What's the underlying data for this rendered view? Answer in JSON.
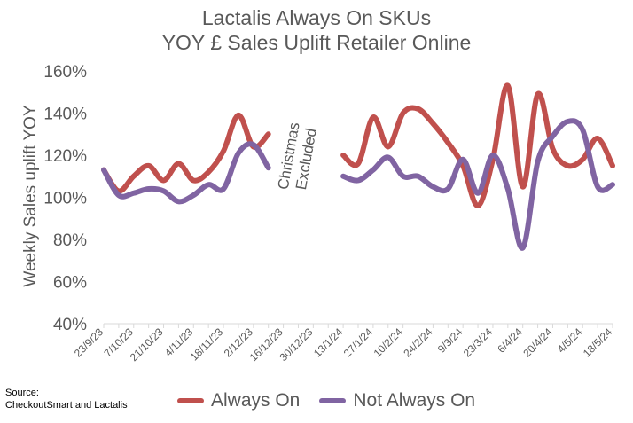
{
  "chart_data": {
    "type": "line",
    "title": "Lactalis Always On SKUs",
    "subtitle": "YOY £ Sales Uplift Retailer Online",
    "ylabel": "Weekly Sales uplift YOY",
    "xlabel": "",
    "ylim": [
      40,
      160
    ],
    "yticks": [
      "40%",
      "60%",
      "80%",
      "100%",
      "120%",
      "140%",
      "160%"
    ],
    "ytick_values": [
      40,
      60,
      80,
      100,
      120,
      140,
      160
    ],
    "x_labels": [
      "23/9/23",
      "7/10/23",
      "21/10/23",
      "4/11/23",
      "18/11/23",
      "2/12/23",
      "16/12/23",
      "30/12/23",
      "13/1/24",
      "27/1/24",
      "10/2/24",
      "24/2/24",
      "9/3/24",
      "23/3/24",
      "6/4/24",
      "20/4/24",
      "4/5/24",
      "18/5/24"
    ],
    "weeks": 35,
    "annotation": "Christmas Excluded",
    "series": [
      {
        "name": "Always On",
        "color": "#c0504d",
        "segments": [
          [
            [
              0,
              113
            ],
            [
              1,
              103
            ],
            [
              2,
              110
            ],
            [
              3,
              115
            ],
            [
              4,
              108
            ],
            [
              5,
              116
            ],
            [
              6,
              108
            ],
            [
              7,
              112
            ],
            [
              8,
              122
            ],
            [
              9,
              139
            ],
            [
              10,
              124
            ],
            [
              11,
              130
            ]
          ],
          [
            [
              16,
              120
            ],
            [
              17,
              116
            ],
            [
              18,
              138
            ],
            [
              19,
              124
            ],
            [
              20,
              140
            ],
            [
              21,
              142
            ],
            [
              22,
              135
            ],
            [
              23,
              126
            ],
            [
              24,
              115
            ],
            [
              25,
              96
            ],
            [
              26,
              118
            ],
            [
              27,
              153
            ],
            [
              28,
              105
            ],
            [
              29,
              149
            ],
            [
              30,
              123
            ],
            [
              31,
              115
            ],
            [
              32,
              118
            ],
            [
              33,
              128
            ],
            [
              34,
              115
            ]
          ]
        ]
      },
      {
        "name": "Not Always On",
        "color": "#8064a2",
        "segments": [
          [
            [
              0,
              113
            ],
            [
              1,
              101
            ],
            [
              2,
              102
            ],
            [
              3,
              104
            ],
            [
              4,
              103
            ],
            [
              5,
              98
            ],
            [
              6,
              101
            ],
            [
              7,
              106
            ],
            [
              8,
              104
            ],
            [
              9,
              121
            ],
            [
              10,
              125
            ],
            [
              11,
              114
            ]
          ],
          [
            [
              16,
              110
            ],
            [
              17,
              108
            ],
            [
              18,
              113
            ],
            [
              19,
              119
            ],
            [
              20,
              110
            ],
            [
              21,
              110
            ],
            [
              22,
              105
            ],
            [
              23,
              104
            ],
            [
              24,
              118
            ],
            [
              25,
              102
            ],
            [
              26,
              120
            ],
            [
              27,
              104
            ],
            [
              28,
              76
            ],
            [
              29,
              117
            ],
            [
              30,
              129
            ],
            [
              31,
              136
            ],
            [
              32,
              132
            ],
            [
              33,
              105
            ],
            [
              34,
              106
            ]
          ]
        ]
      }
    ]
  },
  "source": {
    "label": "Source:",
    "text": "CheckoutSmart and Lactalis"
  },
  "legend": {
    "items": [
      {
        "label": "Always On",
        "color": "#c0504d"
      },
      {
        "label": "Not Always On",
        "color": "#8064a2"
      }
    ]
  }
}
